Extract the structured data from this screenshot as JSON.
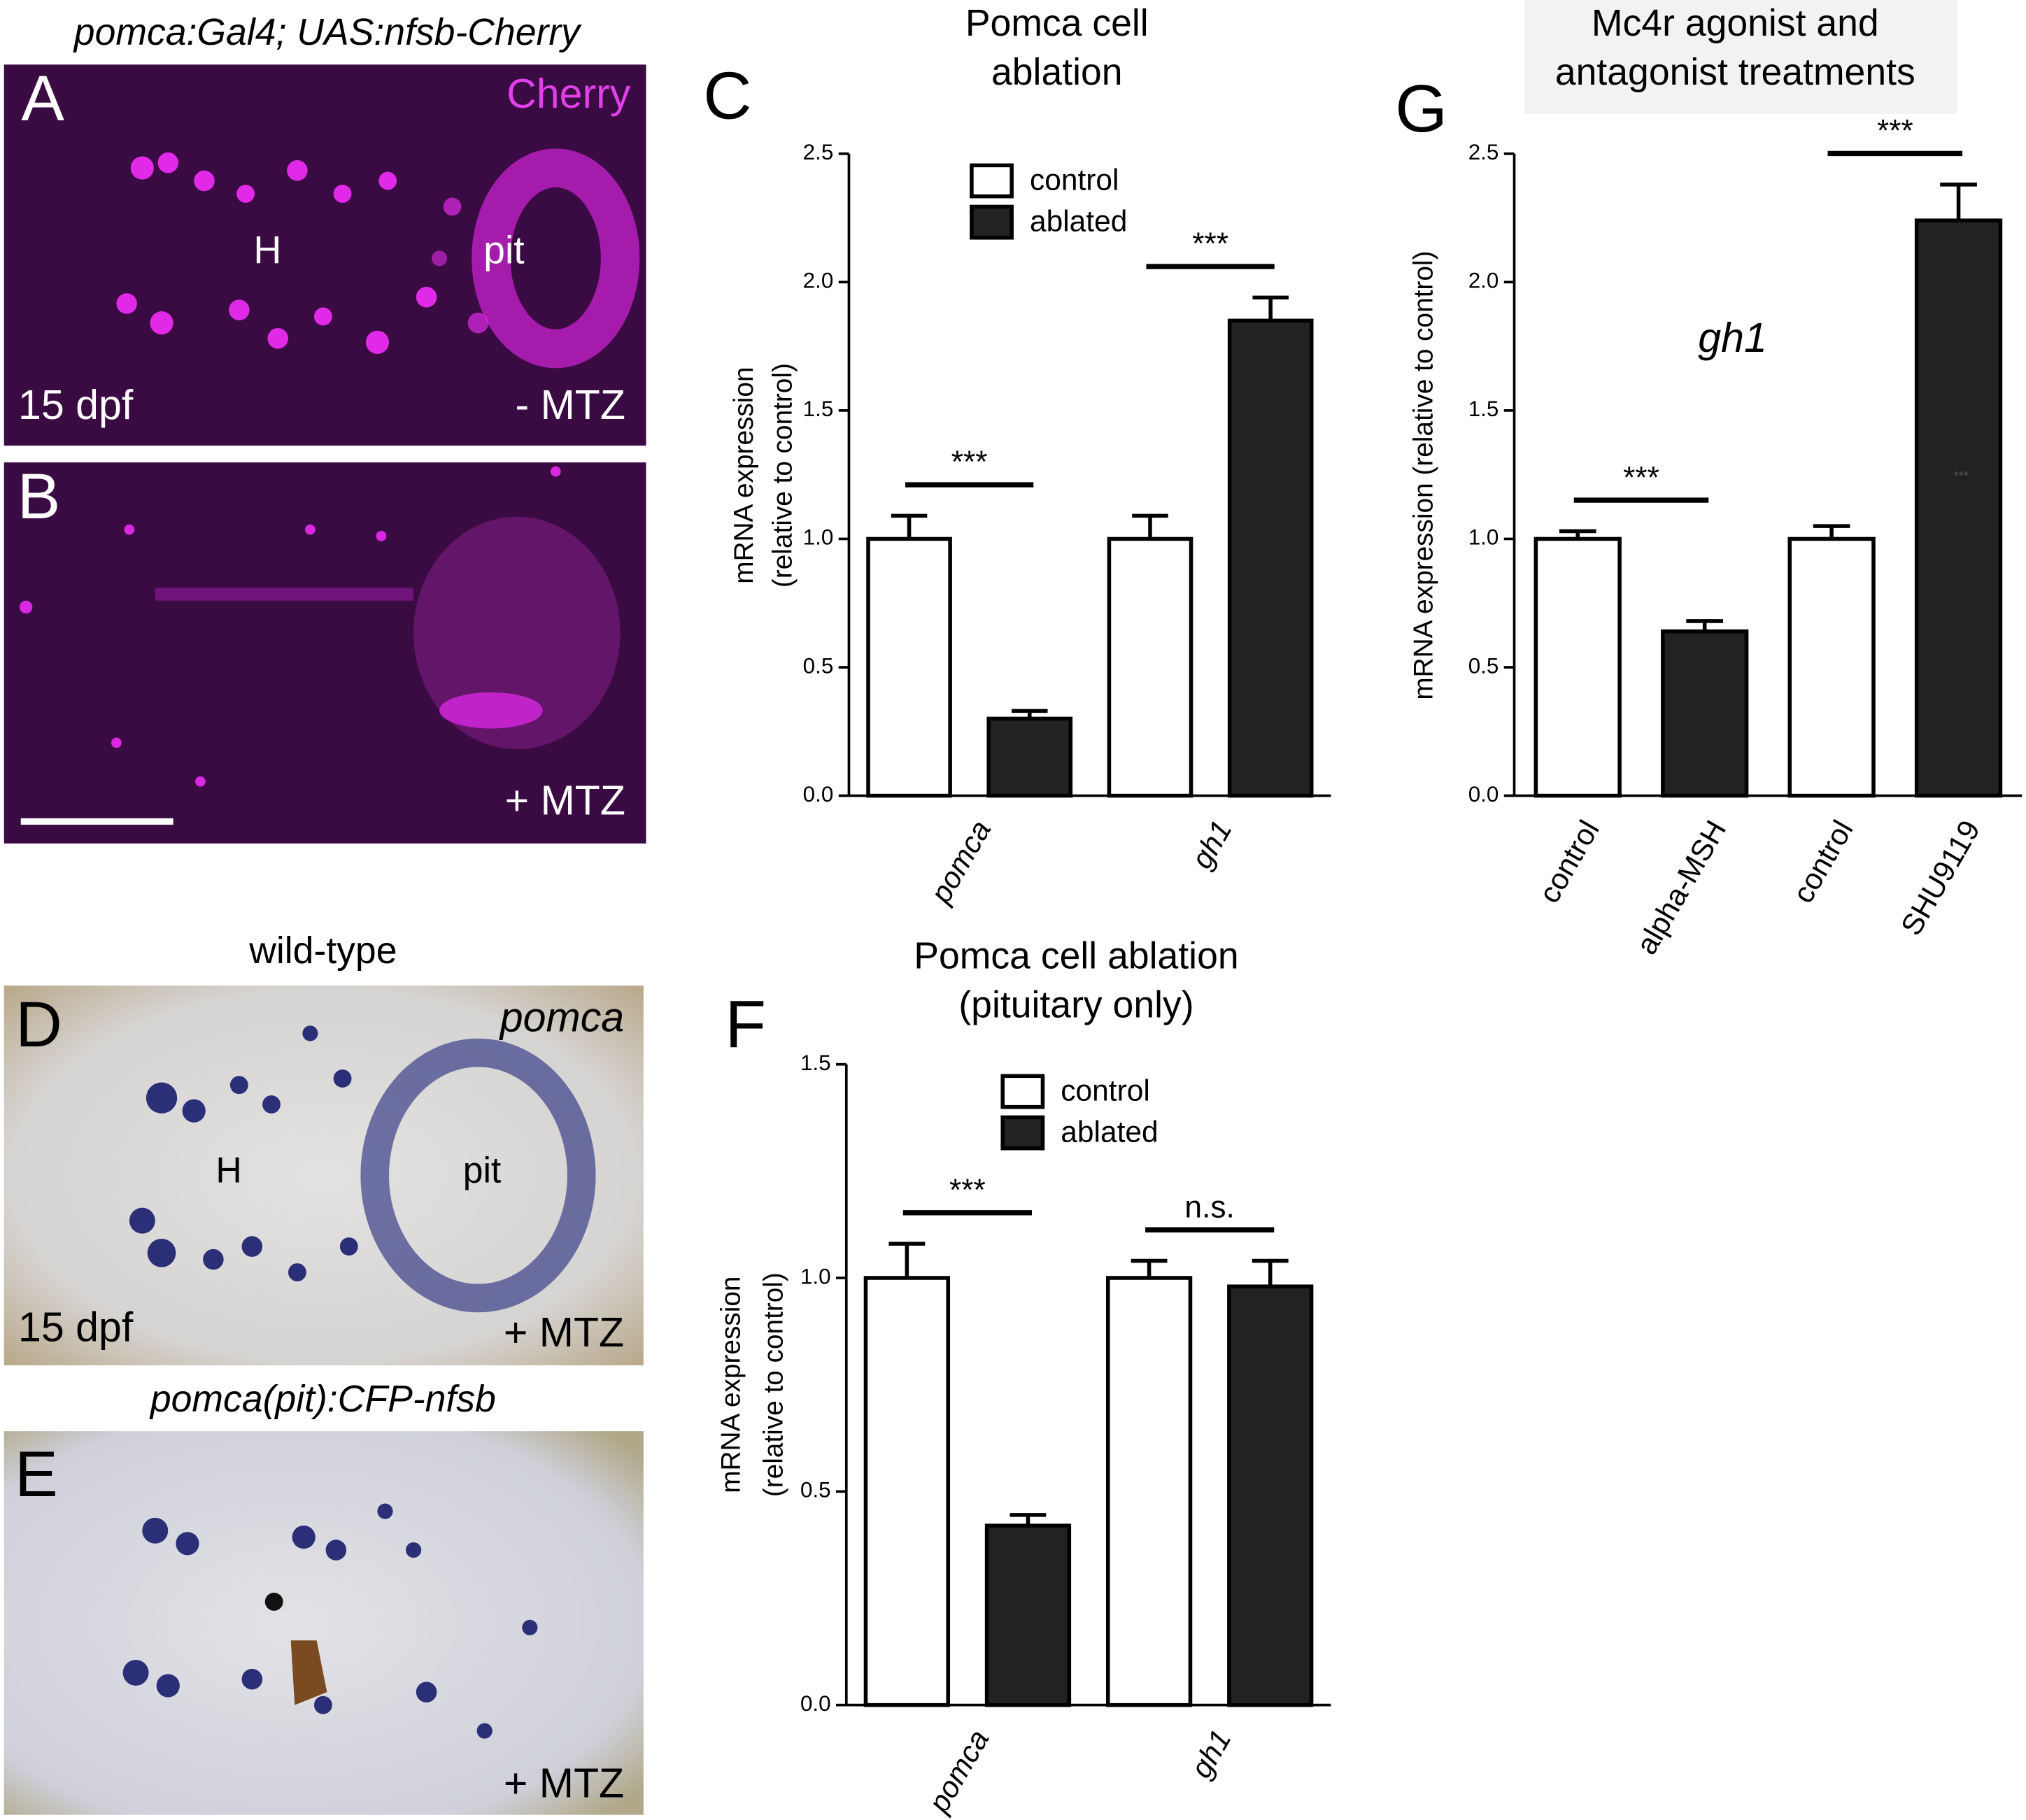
{
  "panels": {
    "A": {
      "letter": "A",
      "title": "pomca:Gal4; UAS:nfsb-Cherry",
      "channel": "Cherry",
      "labels": [
        "H",
        "pit"
      ],
      "age": "15 dpf",
      "treatment": "- MTZ"
    },
    "B": {
      "letter": "B",
      "treatment": "+ MTZ"
    },
    "D": {
      "letter": "D",
      "title": "wild-type",
      "probe": "pomca",
      "labels": [
        "H",
        "pit"
      ],
      "age": "15 dpf",
      "treatment": "+ MTZ"
    },
    "E": {
      "letter": "E",
      "title": "pomca(pit):CFP-nfsb",
      "treatment": "+ MTZ"
    }
  },
  "chart_data": [
    {
      "type": "bar",
      "panel": "C",
      "title": [
        "Pomca cell",
        "ablation"
      ],
      "ylabel": [
        "mRNA expression",
        "(relative to control)"
      ],
      "categories": [
        "pomca",
        "gh1"
      ],
      "italic_categories": true,
      "series": [
        {
          "name": "control",
          "color": "#ffffff",
          "values": [
            1.0,
            1.0
          ],
          "errors": [
            0.09,
            0.09
          ]
        },
        {
          "name": "ablated",
          "color": "#222222",
          "values": [
            0.3,
            1.85
          ],
          "errors": [
            0.03,
            0.09
          ]
        }
      ],
      "ylim": [
        0,
        2.5
      ],
      "yticks": [
        {
          "value": 0,
          "label": "0.0"
        },
        {
          "value": 0.5,
          "label": "0.5"
        },
        {
          "value": 1,
          "label": "1.0"
        },
        {
          "value": 1.5,
          "label": "1.5"
        },
        {
          "value": 2,
          "label": "2.0"
        },
        {
          "value": 2.5,
          "label": "2.5"
        }
      ],
      "legend": "upper left",
      "significance": [
        "***",
        "***"
      ]
    },
    {
      "type": "bar",
      "panel": "F",
      "title": [
        "Pomca cell ablation",
        "(pituitary only)"
      ],
      "ylabel": [
        "mRNA expression",
        "(relative to control)"
      ],
      "categories": [
        "pomca",
        "gh1"
      ],
      "italic_categories": true,
      "series": [
        {
          "name": "control",
          "color": "#ffffff",
          "values": [
            1.0,
            1.0
          ],
          "errors": [
            0.08,
            0.04
          ]
        },
        {
          "name": "ablated",
          "color": "#222222",
          "values": [
            0.42,
            0.98
          ],
          "errors": [
            0.025,
            0.06
          ]
        }
      ],
      "ylim": [
        0,
        1.5
      ],
      "yticks": [
        {
          "value": 0,
          "label": "0.0"
        },
        {
          "value": 0.5,
          "label": "0.5"
        },
        {
          "value": 1,
          "label": "1.0"
        },
        {
          "value": 1.5,
          "label": "1.5"
        }
      ],
      "legend": "upper center",
      "significance": [
        "***",
        "n.s."
      ]
    },
    {
      "type": "bar",
      "panel": "G",
      "title": [
        "Mc4r agonist and",
        "antagonist treatments"
      ],
      "ylabel": [
        "mRNA expression (relative to control)"
      ],
      "annotation": "gh1",
      "note_mark": "***",
      "categories": [
        "control",
        "alpha-MSH",
        "control",
        "SHU9119"
      ],
      "italic_categories": false,
      "series": [
        {
          "values": [
            1.0,
            0.64,
            1.0,
            2.24
          ],
          "errors": [
            0.03,
            0.04,
            0.05,
            0.14
          ],
          "colors": [
            "#ffffff",
            "#222222",
            "#ffffff",
            "#222222"
          ]
        }
      ],
      "ylim": [
        0,
        2.5
      ],
      "yticks": [
        {
          "value": 0,
          "label": "0.0"
        },
        {
          "value": 0.5,
          "label": "0.5"
        },
        {
          "value": 1,
          "label": "1.0"
        },
        {
          "value": 1.5,
          "label": "1.5"
        },
        {
          "value": 2,
          "label": "2.0"
        },
        {
          "value": 2.5,
          "label": "2.5"
        }
      ],
      "significance": [
        "***",
        "***"
      ]
    }
  ]
}
